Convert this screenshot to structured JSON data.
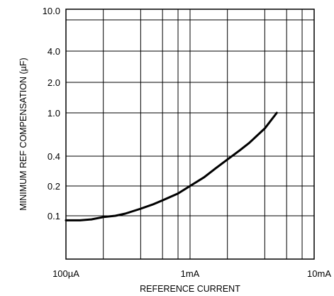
{
  "chart_data": {
    "type": "line",
    "xlabel": "REFERENCE CURRENT",
    "ylabel": "MINIMUM REF COMPENSATION (µF)",
    "x_scale": "log",
    "xlim": [
      0.0001,
      0.01
    ],
    "x_ticks": [
      {
        "value": 0.0001,
        "label": "100µA"
      },
      {
        "value": 0.001,
        "label": "1mA"
      },
      {
        "value": 0.01,
        "label": "10mA"
      }
    ],
    "y_ticks": [
      {
        "value": 10.0,
        "label": "10.0"
      },
      {
        "value": 4.0,
        "label": "4.0"
      },
      {
        "value": 2.0,
        "label": "2.0"
      },
      {
        "value": 1.0,
        "label": "1.0"
      },
      {
        "value": 0.4,
        "label": "0.4"
      },
      {
        "value": 0.2,
        "label": "0.2"
      },
      {
        "value": 0.1,
        "label": "0.1"
      }
    ],
    "grid": true,
    "series": [
      {
        "values": [
          {
            "x": 0.0001,
            "y": 0.09
          },
          {
            "x": 0.00013,
            "y": 0.09
          },
          {
            "x": 0.00016,
            "y": 0.092
          },
          {
            "x": 0.0002,
            "y": 0.097
          },
          {
            "x": 0.00025,
            "y": 0.1
          },
          {
            "x": 0.0003,
            "y": 0.105
          },
          {
            "x": 0.0004,
            "y": 0.118
          },
          {
            "x": 0.0005,
            "y": 0.13
          },
          {
            "x": 0.0006,
            "y": 0.143
          },
          {
            "x": 0.0008,
            "y": 0.168
          },
          {
            "x": 0.001,
            "y": 0.2
          },
          {
            "x": 0.0013,
            "y": 0.245
          },
          {
            "x": 0.0016,
            "y": 0.3
          },
          {
            "x": 0.002,
            "y": 0.37
          },
          {
            "x": 0.0025,
            "y": 0.45
          },
          {
            "x": 0.003,
            "y": 0.53
          },
          {
            "x": 0.004,
            "y": 0.72
          },
          {
            "x": 0.005,
            "y": 1.0
          }
        ]
      }
    ]
  }
}
